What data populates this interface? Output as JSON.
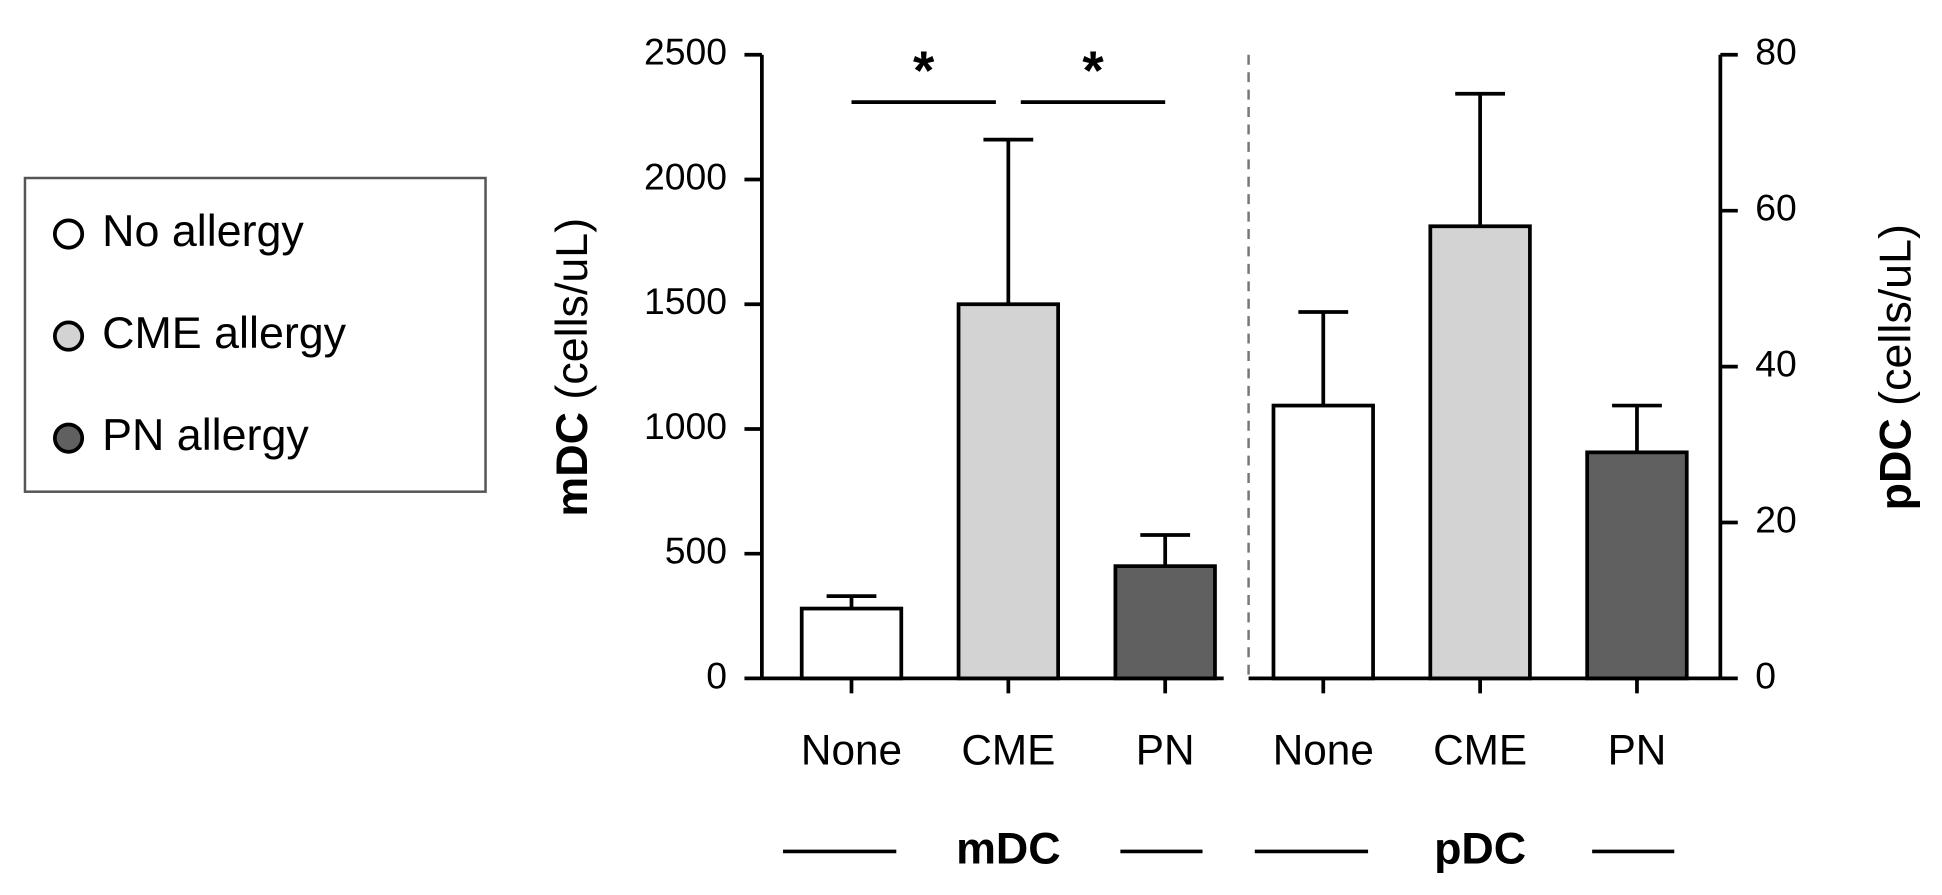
{
  "chart_data": {
    "type": "bar",
    "categories": [
      "None",
      "CME",
      "PN"
    ],
    "colors": [
      "#ffffff",
      "#d3d3d3",
      "#606060"
    ],
    "legend": [
      "No allergy",
      "CME allergy",
      "PN allergy"
    ],
    "ylabel": {
      "bold": "mDC",
      "unit": "(cells/uL)"
    },
    "y2label": {
      "bold": "pDC",
      "unit": "(cells/uL)"
    },
    "ylim": [
      0,
      2500
    ],
    "yticks": [
      0,
      500,
      1000,
      1500,
      2000,
      2500
    ],
    "y2lim": [
      0,
      80
    ],
    "y2ticks": [
      0,
      20,
      40,
      60,
      80
    ],
    "series": [
      {
        "name": "mDC",
        "axis": "y",
        "values": [
          280,
          1500,
          450
        ],
        "errors": [
          50,
          660,
          125
        ]
      },
      {
        "name": "pDC",
        "axis": "y2",
        "values": [
          35,
          58,
          29
        ],
        "errors": [
          12,
          17,
          6
        ]
      }
    ],
    "annotations": [
      "*",
      "*"
    ]
  }
}
